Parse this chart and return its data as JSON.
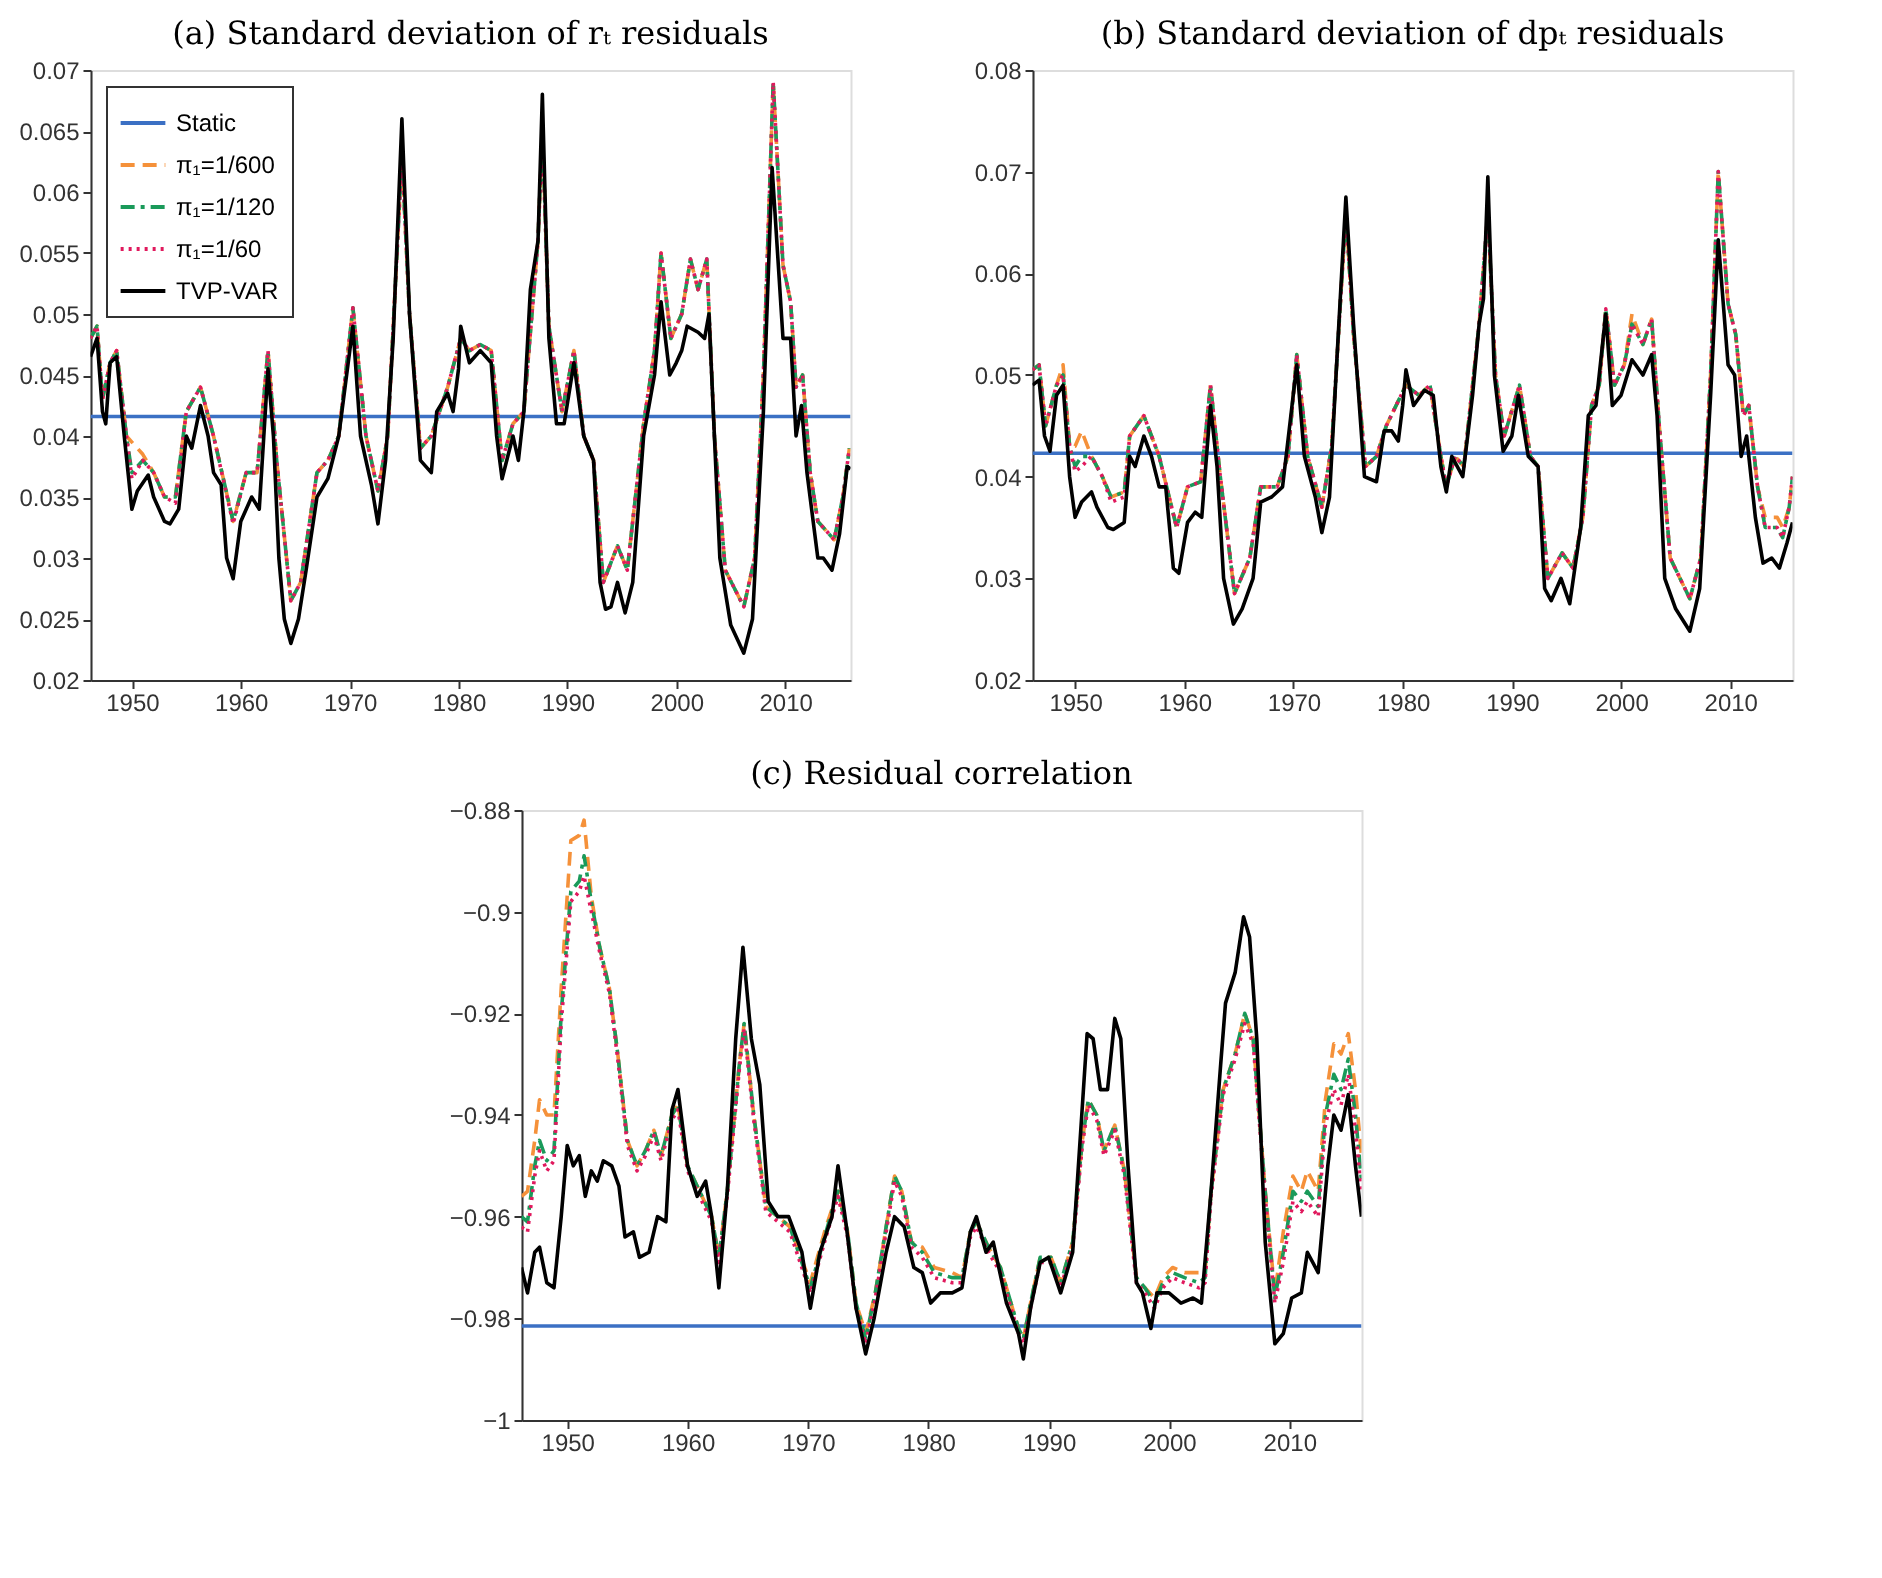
{
  "chart_data": [
    {
      "type": "line",
      "title": "(a) Standard deviation of rₜ residuals",
      "legend": "top left",
      "grid": false,
      "xlim": [
        1946.2,
        2016
      ],
      "xticks": [
        1950,
        1960,
        1970,
        1980,
        1990,
        2000,
        2010
      ],
      "ylim": [
        0.02,
        0.07
      ],
      "yticks": [
        0.02,
        0.025,
        0.03,
        0.035,
        0.04,
        0.045,
        0.05,
        0.055,
        0.06,
        0.065,
        0.07
      ],
      "x": [
        1946.2,
        1946.8,
        1947.3,
        1948,
        1948.6,
        1949.5,
        1950,
        1951,
        1952,
        1953,
        1954,
        1955,
        1956.3,
        1957.5,
        1959.3,
        1960.5,
        1961.5,
        1962.5,
        1963.3,
        1964.6,
        1965.5,
        1967,
        1968,
        1969,
        1970.3,
        1971.5,
        1972.6,
        1973.5,
        1974.8,
        1975.5,
        1976.5,
        1977.5,
        1979,
        1980.2,
        1981,
        1982,
        1983,
        1984,
        1985,
        1986,
        1987.3,
        1987.7,
        1988.3,
        1989.5,
        1990.6,
        1991.5,
        1992.4,
        1993.3,
        1994.6,
        1995.5,
        1997,
        1998,
        1998.6,
        1999.5,
        2000.5,
        2001.3,
        2002,
        2002.8,
        2003.5,
        2004.5,
        2006.2,
        2007.2,
        2008,
        2008.9,
        2009.8,
        2010.5,
        2011,
        2011.6,
        2012.3,
        2013,
        2014,
        2014.5,
        2015.3,
        2015.9
      ],
      "series": [
        {
          "name": "Static",
          "color": "#3b70c4",
          "line_style": "solid",
          "x": [
            1946.2,
            2016
          ],
          "values": [
            0.0416,
            0.0416
          ]
        },
        {
          "name": "π₁=1/600",
          "color": "#f5913a",
          "line_style": "dashed",
          "values": [
            0.048,
            0.049,
            0.043,
            0.046,
            0.047,
            0.04,
            0.0395,
            0.0385,
            0.037,
            0.035,
            0.035,
            0.042,
            0.044,
            0.04,
            0.033,
            0.037,
            0.037,
            0.047,
            0.038,
            0.0265,
            0.028,
            0.037,
            0.038,
            0.04,
            0.0505,
            0.04,
            0.0355,
            0.04,
            0.063,
            0.05,
            0.039,
            0.04,
            0.044,
            0.048,
            0.047,
            0.0475,
            0.047,
            0.038,
            0.041,
            0.042,
            0.056,
            0.065,
            0.049,
            0.042,
            0.047,
            0.04,
            0.038,
            0.028,
            0.031,
            0.029,
            0.041,
            0.047,
            0.055,
            0.048,
            0.05,
            0.0545,
            0.052,
            0.0545,
            0.04,
            0.029,
            0.026,
            0.03,
            0.045,
            0.069,
            0.054,
            0.051,
            0.044,
            0.045,
            0.037,
            0.033,
            0.032,
            0.0315,
            0.035,
            0.039
          ]
        },
        {
          "name": "π₁=1/120",
          "color": "#1a9a5a",
          "line_style": "dashdot",
          "values": [
            0.048,
            0.049,
            0.043,
            0.046,
            0.047,
            0.04,
            0.037,
            0.038,
            0.037,
            0.035,
            0.035,
            0.042,
            0.044,
            0.04,
            0.033,
            0.037,
            0.037,
            0.047,
            0.038,
            0.0265,
            0.028,
            0.037,
            0.038,
            0.04,
            0.0505,
            0.04,
            0.0355,
            0.04,
            0.063,
            0.05,
            0.039,
            0.04,
            0.044,
            0.048,
            0.047,
            0.0475,
            0.047,
            0.038,
            0.041,
            0.042,
            0.056,
            0.065,
            0.049,
            0.042,
            0.047,
            0.04,
            0.038,
            0.028,
            0.031,
            0.029,
            0.041,
            0.047,
            0.055,
            0.048,
            0.05,
            0.0545,
            0.052,
            0.0545,
            0.04,
            0.029,
            0.026,
            0.03,
            0.045,
            0.069,
            0.054,
            0.051,
            0.044,
            0.045,
            0.037,
            0.033,
            0.032,
            0.0315,
            0.035,
            0.039
          ]
        },
        {
          "name": "π₁=1/60",
          "color": "#e0195d",
          "line_style": "dotted",
          "values": [
            0.048,
            0.049,
            0.043,
            0.046,
            0.047,
            0.04,
            0.0365,
            0.038,
            0.037,
            0.035,
            0.0345,
            0.042,
            0.044,
            0.04,
            0.0328,
            0.037,
            0.037,
            0.047,
            0.038,
            0.0265,
            0.028,
            0.037,
            0.038,
            0.04,
            0.0505,
            0.04,
            0.0355,
            0.04,
            0.063,
            0.05,
            0.039,
            0.04,
            0.044,
            0.048,
            0.047,
            0.0475,
            0.047,
            0.038,
            0.041,
            0.042,
            0.056,
            0.065,
            0.049,
            0.042,
            0.047,
            0.04,
            0.038,
            0.028,
            0.031,
            0.029,
            0.041,
            0.047,
            0.055,
            0.048,
            0.05,
            0.0545,
            0.052,
            0.0545,
            0.04,
            0.029,
            0.026,
            0.03,
            0.045,
            0.069,
            0.054,
            0.051,
            0.044,
            0.045,
            0.037,
            0.033,
            0.032,
            0.0315,
            0.035,
            0.039
          ]
        },
        {
          "name": "TVP-VAR",
          "color": "#000000",
          "line_style": "solid",
          "x": [
            1946.2,
            1946.8,
            1947.3,
            1947.6,
            1948,
            1948.6,
            1949.3,
            1950,
            1950.5,
            1951.5,
            1952,
            1953,
            1953.5,
            1954.3,
            1955,
            1955.5,
            1956.3,
            1957,
            1957.5,
            1958.2,
            1958.7,
            1959.3,
            1960,
            1960.5,
            1961,
            1961.7,
            1962.5,
            1963,
            1963.5,
            1964,
            1964.6,
            1965.3,
            1966,
            1967,
            1968,
            1969,
            1970.3,
            1971,
            1972,
            1972.6,
            1973.3,
            1974,
            1974.8,
            1975.5,
            1976.5,
            1977.5,
            1978,
            1979,
            1979.5,
            1980,
            1980.2,
            1981,
            1982,
            1983,
            1983.5,
            1984,
            1985,
            1985.5,
            1986,
            1986.6,
            1987.3,
            1987.7,
            1988.3,
            1989,
            1989.7,
            1990.6,
            1991.5,
            1992.4,
            1993,
            1993.5,
            1994,
            1994.6,
            1995.3,
            1996,
            1997,
            1998,
            1998.6,
            1999.4,
            2000,
            2000.5,
            2001,
            2002,
            2002.6,
            2003,
            2004,
            2005,
            2006.2,
            2007,
            2008,
            2008.8,
            2009.8,
            2010.5,
            2011,
            2011.5,
            2012,
            2013,
            2013.5,
            2014.3,
            2015,
            2015.7,
            2016
          ],
          "values": [
            0.0465,
            0.048,
            0.042,
            0.041,
            0.046,
            0.0465,
            0.04,
            0.034,
            0.0355,
            0.0368,
            0.035,
            0.033,
            0.0328,
            0.034,
            0.04,
            0.039,
            0.0425,
            0.04,
            0.037,
            0.036,
            0.03,
            0.0283,
            0.033,
            0.034,
            0.035,
            0.034,
            0.0455,
            0.04,
            0.03,
            0.025,
            0.023,
            0.025,
            0.029,
            0.035,
            0.0365,
            0.04,
            0.049,
            0.04,
            0.036,
            0.0328,
            0.038,
            0.048,
            0.066,
            0.05,
            0.038,
            0.037,
            0.042,
            0.0435,
            0.042,
            0.0455,
            0.049,
            0.046,
            0.047,
            0.046,
            0.04,
            0.0365,
            0.04,
            0.038,
            0.042,
            0.052,
            0.056,
            0.068,
            0.048,
            0.041,
            0.041,
            0.046,
            0.04,
            0.038,
            0.028,
            0.0258,
            0.026,
            0.028,
            0.0255,
            0.028,
            0.04,
            0.045,
            0.051,
            0.045,
            0.046,
            0.047,
            0.049,
            0.0485,
            0.048,
            0.05,
            0.03,
            0.0245,
            0.0222,
            0.025,
            0.042,
            0.062,
            0.048,
            0.048,
            0.04,
            0.0425,
            0.037,
            0.03,
            0.03,
            0.029,
            0.032,
            0.0375,
            0.0373
          ]
        }
      ]
    },
    {
      "type": "line",
      "title": "(b) Standard deviation of dpₜ residuals",
      "legend": false,
      "grid": false,
      "xlim": [
        1946.1,
        2015.7
      ],
      "xticks": [
        1950,
        1960,
        1970,
        1980,
        1990,
        2000,
        2010
      ],
      "ylim": [
        0.02,
        0.08
      ],
      "yticks": [
        0.02,
        0.03,
        0.04,
        0.05,
        0.06,
        0.07,
        0.08
      ],
      "x": [
        1946.1,
        1946.7,
        1947.3,
        1948.3,
        1948.9,
        1949.5,
        1950,
        1950.6,
        1951.5,
        1952.5,
        1953.3,
        1954.5,
        1955,
        1956.3,
        1957.7,
        1959.3,
        1960.3,
        1961.5,
        1962.4,
        1963.3,
        1964.6,
        1966,
        1967,
        1968.5,
        1969.5,
        1970.3,
        1971.3,
        1972.6,
        1973.5,
        1974.8,
        1975.5,
        1976.6,
        1977.6,
        1978.5,
        1980.3,
        1981.5,
        1982.5,
        1983.5,
        1984,
        1984.8,
        1985.6,
        1987,
        1987.8,
        1988.5,
        1989.3,
        1990.7,
        1991.7,
        1992.4,
        1993.3,
        1994.6,
        1995.6,
        1996.5,
        1997.3,
        1998,
        1998.6,
        1999.4,
        2000.3,
        2001,
        2002,
        2002.8,
        2003.5,
        2004.5,
        2006.3,
        2007.3,
        2008.2,
        2008.9,
        2009.8,
        2010.5,
        2011.2,
        2011.7,
        2012.5,
        2013.2,
        2014.3,
        2014.8,
        2015.4,
        2015.7
      ],
      "series": [
        {
          "color": "#3b70c4",
          "line_style": "solid",
          "x": [
            1946.1,
            2015.7
          ],
          "values": [
            0.0423,
            0.0423
          ]
        },
        {
          "color": "#f5913a",
          "line_style": "dashed",
          "values": [
            0.0505,
            0.051,
            0.045,
            0.049,
            0.051,
            0.043,
            0.043,
            0.0445,
            0.042,
            0.04,
            0.038,
            0.0385,
            0.044,
            0.046,
            0.042,
            0.035,
            0.039,
            0.0395,
            0.049,
            0.04,
            0.0285,
            0.032,
            0.039,
            0.039,
            0.042,
            0.052,
            0.042,
            0.037,
            0.043,
            0.066,
            0.054,
            0.041,
            0.042,
            0.045,
            0.049,
            0.048,
            0.049,
            0.042,
            0.039,
            0.042,
            0.041,
            0.055,
            0.066,
            0.05,
            0.044,
            0.049,
            0.042,
            0.041,
            0.03,
            0.0325,
            0.031,
            0.036,
            0.047,
            0.049,
            0.0565,
            0.049,
            0.051,
            0.056,
            0.053,
            0.0555,
            0.045,
            0.032,
            0.028,
            0.032,
            0.05,
            0.07,
            0.057,
            0.054,
            0.046,
            0.047,
            0.039,
            0.036,
            0.036,
            0.035,
            0.037,
            0.04
          ]
        },
        {
          "color": "#1a9a5a",
          "line_style": "dashdot",
          "values": [
            0.0505,
            0.051,
            0.045,
            0.049,
            0.05,
            0.043,
            0.041,
            0.042,
            0.042,
            0.04,
            0.038,
            0.0385,
            0.044,
            0.046,
            0.042,
            0.035,
            0.039,
            0.0395,
            0.049,
            0.04,
            0.0285,
            0.032,
            0.039,
            0.039,
            0.042,
            0.052,
            0.042,
            0.037,
            0.043,
            0.066,
            0.054,
            0.041,
            0.042,
            0.045,
            0.049,
            0.048,
            0.049,
            0.042,
            0.039,
            0.042,
            0.041,
            0.055,
            0.066,
            0.05,
            0.044,
            0.049,
            0.042,
            0.041,
            0.03,
            0.0325,
            0.031,
            0.036,
            0.047,
            0.049,
            0.0565,
            0.049,
            0.051,
            0.055,
            0.053,
            0.0555,
            0.045,
            0.032,
            0.028,
            0.032,
            0.05,
            0.07,
            0.057,
            0.054,
            0.046,
            0.047,
            0.039,
            0.035,
            0.035,
            0.034,
            0.037,
            0.04
          ]
        },
        {
          "color": "#e0195d",
          "line_style": "dotted",
          "values": [
            0.0505,
            0.051,
            0.045,
            0.049,
            0.05,
            0.043,
            0.0405,
            0.041,
            0.042,
            0.04,
            0.0375,
            0.038,
            0.044,
            0.046,
            0.042,
            0.035,
            0.039,
            0.0395,
            0.049,
            0.04,
            0.0285,
            0.032,
            0.039,
            0.039,
            0.042,
            0.052,
            0.042,
            0.037,
            0.043,
            0.066,
            0.054,
            0.041,
            0.042,
            0.045,
            0.049,
            0.048,
            0.049,
            0.042,
            0.039,
            0.042,
            0.041,
            0.055,
            0.066,
            0.05,
            0.044,
            0.049,
            0.042,
            0.041,
            0.03,
            0.0325,
            0.031,
            0.036,
            0.047,
            0.049,
            0.0565,
            0.049,
            0.051,
            0.055,
            0.053,
            0.0555,
            0.045,
            0.032,
            0.028,
            0.032,
            0.05,
            0.07,
            0.057,
            0.054,
            0.046,
            0.047,
            0.039,
            0.035,
            0.035,
            0.034,
            0.037,
            0.04
          ]
        },
        {
          "color": "#000000",
          "line_style": "solid",
          "x": [
            1946.1,
            1946.7,
            1947.2,
            1947.7,
            1948.3,
            1948.9,
            1949.5,
            1950,
            1950.6,
            1951.5,
            1952,
            1953,
            1953.5,
            1954.5,
            1955,
            1955.5,
            1956.3,
            1957,
            1957.7,
            1958.3,
            1959,
            1959.5,
            1960.3,
            1961,
            1961.6,
            1962.4,
            1963,
            1963.6,
            1964.5,
            1965.3,
            1966.3,
            1967,
            1968,
            1969,
            1970.3,
            1971,
            1972,
            1972.6,
            1973.3,
            1974,
            1974.8,
            1975.5,
            1976.5,
            1977.6,
            1978.3,
            1979,
            1979.6,
            1980,
            1980.3,
            1981,
            1982,
            1982.8,
            1983.5,
            1984,
            1984.5,
            1985.5,
            1986.4,
            1987,
            1987.4,
            1987.8,
            1988.4,
            1989.2,
            1990,
            1990.6,
            1991.5,
            1992.4,
            1993,
            1993.6,
            1994.5,
            1995.3,
            1996.3,
            1997,
            1997.7,
            1998.6,
            1999.2,
            2000,
            2001,
            2002,
            2002.8,
            2003.3,
            2004,
            2005,
            2006.3,
            2007.2,
            2008.2,
            2008.9,
            2009.8,
            2010.4,
            2011,
            2011.5,
            2012.3,
            2013,
            2013.8,
            2014.5,
            2015.2,
            2015.7
          ],
          "values": [
            0.049,
            0.0495,
            0.044,
            0.0425,
            0.048,
            0.049,
            0.04,
            0.036,
            0.0375,
            0.0385,
            0.037,
            0.035,
            0.0348,
            0.0355,
            0.042,
            0.041,
            0.044,
            0.042,
            0.039,
            0.039,
            0.031,
            0.0305,
            0.0355,
            0.0365,
            0.036,
            0.047,
            0.041,
            0.03,
            0.0255,
            0.027,
            0.03,
            0.0375,
            0.038,
            0.039,
            0.051,
            0.042,
            0.038,
            0.0345,
            0.038,
            0.052,
            0.0675,
            0.055,
            0.04,
            0.0395,
            0.0445,
            0.0445,
            0.0435,
            0.047,
            0.0505,
            0.047,
            0.0485,
            0.048,
            0.041,
            0.0385,
            0.042,
            0.04,
            0.048,
            0.055,
            0.0575,
            0.0695,
            0.05,
            0.0425,
            0.044,
            0.048,
            0.042,
            0.041,
            0.029,
            0.0278,
            0.03,
            0.0275,
            0.035,
            0.046,
            0.047,
            0.056,
            0.047,
            0.048,
            0.0515,
            0.05,
            0.052,
            0.046,
            0.03,
            0.027,
            0.0248,
            0.029,
            0.048,
            0.0633,
            0.051,
            0.05,
            0.042,
            0.044,
            0.036,
            0.0315,
            0.032,
            0.031,
            0.0335,
            0.0355
          ]
        }
      ]
    },
    {
      "type": "line",
      "title": "(c) Residual correlation",
      "legend": false,
      "grid": false,
      "xlim": [
        1946.2,
        2016
      ],
      "xticks": [
        1950,
        1960,
        1970,
        1980,
        1990,
        2000,
        2010
      ],
      "ylim": [
        -1,
        -0.88
      ],
      "yticks": [
        -1,
        -0.98,
        -0.96,
        -0.94,
        -0.92,
        -0.9,
        -0.88
      ],
      "x": [
        1946.2,
        1946.7,
        1947.3,
        1947.7,
        1948.3,
        1948.9,
        1949.5,
        1950.3,
        1951,
        1951.4,
        1952,
        1952.7,
        1953.5,
        1954.2,
        1955,
        1955.8,
        1956.5,
        1957.2,
        1957.8,
        1958.7,
        1959.2,
        1960,
        1961,
        1962,
        1962.6,
        1963.3,
        1964.3,
        1964.7,
        1965.5,
        1966.5,
        1967.5,
        1968.5,
        1970.2,
        1971.5,
        1972.5,
        1973.3,
        1974,
        1974.8,
        1975.6,
        1976.5,
        1977.2,
        1977.8,
        1978.6,
        1979.5,
        1980.5,
        1982,
        1982.8,
        1983.5,
        1984,
        1985,
        1986,
        1987.5,
        1987.9,
        1988.5,
        1989.3,
        1990.2,
        1991,
        1992,
        1992.8,
        1993.3,
        1994,
        1994.6,
        1995.5,
        1996.3,
        1997.3,
        1998,
        1998.8,
        1999.5,
        2000.3,
        2001.3,
        2002.5,
        2003,
        2003.5,
        2004.5,
        2005.5,
        2006.3,
        2007,
        2008,
        2008.8,
        2009.5,
        2010.3,
        2011,
        2011.5,
        2012.4,
        2013,
        2013.7,
        2014.3,
        2014.9,
        2015.5,
        2016
      ],
      "series": [
        {
          "color": "#3b70c4",
          "line_style": "solid",
          "x": [
            1946.2,
            2016
          ],
          "values": [
            -0.9815,
            -0.9815
          ]
        },
        {
          "color": "#f5913a",
          "line_style": "dashed",
          "values": [
            -0.956,
            -0.955,
            -0.945,
            -0.937,
            -0.94,
            -0.94,
            -0.915,
            -0.886,
            -0.885,
            -0.882,
            -0.897,
            -0.907,
            -0.915,
            -0.928,
            -0.945,
            -0.95,
            -0.947,
            -0.943,
            -0.948,
            -0.94,
            -0.938,
            -0.95,
            -0.955,
            -0.96,
            -0.968,
            -0.955,
            -0.93,
            -0.922,
            -0.94,
            -0.958,
            -0.96,
            -0.962,
            -0.973,
            -0.962,
            -0.955,
            -0.963,
            -0.977,
            -0.983,
            -0.975,
            -0.962,
            -0.952,
            -0.955,
            -0.965,
            -0.966,
            -0.97,
            -0.971,
            -0.972,
            -0.963,
            -0.961,
            -0.966,
            -0.97,
            -0.982,
            -0.984,
            -0.977,
            -0.968,
            -0.968,
            -0.973,
            -0.965,
            -0.945,
            -0.937,
            -0.94,
            -0.947,
            -0.942,
            -0.951,
            -0.972,
            -0.974,
            -0.976,
            -0.972,
            -0.97,
            -0.971,
            -0.971,
            -0.971,
            -0.955,
            -0.935,
            -0.928,
            -0.92,
            -0.925,
            -0.955,
            -0.975,
            -0.963,
            -0.952,
            -0.955,
            -0.951,
            -0.955,
            -0.937,
            -0.926,
            -0.928,
            -0.924,
            -0.935,
            -0.948
          ]
        },
        {
          "color": "#1a9a5a",
          "line_style": "dashdot",
          "values": [
            -0.96,
            -0.961,
            -0.95,
            -0.945,
            -0.949,
            -0.947,
            -0.92,
            -0.896,
            -0.894,
            -0.889,
            -0.898,
            -0.907,
            -0.915,
            -0.928,
            -0.945,
            -0.95,
            -0.947,
            -0.943,
            -0.948,
            -0.94,
            -0.938,
            -0.95,
            -0.955,
            -0.96,
            -0.968,
            -0.955,
            -0.93,
            -0.922,
            -0.94,
            -0.958,
            -0.96,
            -0.962,
            -0.974,
            -0.963,
            -0.955,
            -0.963,
            -0.977,
            -0.984,
            -0.975,
            -0.962,
            -0.952,
            -0.955,
            -0.965,
            -0.967,
            -0.971,
            -0.972,
            -0.972,
            -0.963,
            -0.961,
            -0.966,
            -0.97,
            -0.982,
            -0.984,
            -0.977,
            -0.968,
            -0.968,
            -0.973,
            -0.965,
            -0.945,
            -0.937,
            -0.94,
            -0.947,
            -0.942,
            -0.951,
            -0.972,
            -0.974,
            -0.977,
            -0.973,
            -0.971,
            -0.972,
            -0.973,
            -0.972,
            -0.955,
            -0.935,
            -0.928,
            -0.92,
            -0.925,
            -0.955,
            -0.976,
            -0.967,
            -0.955,
            -0.957,
            -0.955,
            -0.958,
            -0.94,
            -0.932,
            -0.935,
            -0.929,
            -0.94,
            -0.953
          ]
        },
        {
          "color": "#e0195d",
          "line_style": "dotted",
          "values": [
            -0.962,
            -0.963,
            -0.952,
            -0.947,
            -0.951,
            -0.949,
            -0.922,
            -0.898,
            -0.896,
            -0.893,
            -0.9,
            -0.908,
            -0.916,
            -0.929,
            -0.946,
            -0.951,
            -0.948,
            -0.944,
            -0.949,
            -0.941,
            -0.939,
            -0.951,
            -0.956,
            -0.961,
            -0.969,
            -0.956,
            -0.931,
            -0.923,
            -0.941,
            -0.959,
            -0.961,
            -0.963,
            -0.975,
            -0.964,
            -0.956,
            -0.964,
            -0.978,
            -0.985,
            -0.976,
            -0.963,
            -0.953,
            -0.956,
            -0.966,
            -0.968,
            -0.972,
            -0.973,
            -0.973,
            -0.964,
            -0.962,
            -0.967,
            -0.971,
            -0.983,
            -0.985,
            -0.978,
            -0.969,
            -0.969,
            -0.974,
            -0.966,
            -0.946,
            -0.938,
            -0.941,
            -0.948,
            -0.943,
            -0.952,
            -0.973,
            -0.975,
            -0.978,
            -0.974,
            -0.972,
            -0.973,
            -0.974,
            -0.973,
            -0.956,
            -0.936,
            -0.929,
            -0.922,
            -0.926,
            -0.956,
            -0.977,
            -0.969,
            -0.957,
            -0.959,
            -0.957,
            -0.96,
            -0.942,
            -0.935,
            -0.938,
            -0.932,
            -0.943,
            -0.955
          ]
        },
        {
          "color": "#000000",
          "line_style": "solid",
          "x": [
            1946.2,
            1946.7,
            1947.3,
            1947.7,
            1948.3,
            1948.9,
            1949.5,
            1950,
            1950.5,
            1951,
            1951.5,
            1952,
            1952.5,
            1953,
            1953.7,
            1954.3,
            1954.8,
            1955.5,
            1956,
            1956.8,
            1957.5,
            1958.2,
            1958.7,
            1959.2,
            1960,
            1960.8,
            1961.5,
            1962,
            1962.6,
            1963.3,
            1964,
            1964.6,
            1965.3,
            1966,
            1966.7,
            1967.5,
            1968.4,
            1969.5,
            1970.2,
            1971,
            1972,
            1972.5,
            1973.2,
            1974,
            1974.8,
            1975.5,
            1976.5,
            1977.2,
            1978,
            1978.8,
            1979.5,
            1980.2,
            1981,
            1982,
            1982.8,
            1983.5,
            1984,
            1984.8,
            1985.4,
            1986.5,
            1987.5,
            1987.9,
            1988.5,
            1989.3,
            1990,
            1991,
            1992,
            1992.7,
            1993.2,
            1993.7,
            1994.3,
            1994.9,
            1995.5,
            1996,
            1996.6,
            1997.3,
            1997.8,
            1998.5,
            1999,
            2000,
            2001,
            2002,
            2002.7,
            2003.5,
            2004.3,
            2004.7,
            2005.5,
            2006.2,
            2006.7,
            2007.3,
            2008,
            2008.8,
            2009.5,
            2010.2,
            2011,
            2011.5,
            2012.4,
            2013.2,
            2013.7,
            2014.3,
            2014.9,
            2015.5,
            2016
          ],
          "values": [
            -0.97,
            -0.975,
            -0.967,
            -0.966,
            -0.973,
            -0.974,
            -0.96,
            -0.946,
            -0.95,
            -0.948,
            -0.956,
            -0.951,
            -0.953,
            -0.949,
            -0.95,
            -0.954,
            -0.964,
            -0.963,
            -0.968,
            -0.967,
            -0.96,
            -0.961,
            -0.939,
            -0.935,
            -0.95,
            -0.956,
            -0.953,
            -0.96,
            -0.974,
            -0.955,
            -0.925,
            -0.907,
            -0.925,
            -0.934,
            -0.957,
            -0.96,
            -0.96,
            -0.967,
            -0.978,
            -0.967,
            -0.96,
            -0.95,
            -0.962,
            -0.978,
            -0.987,
            -0.98,
            -0.967,
            -0.96,
            -0.962,
            -0.97,
            -0.971,
            -0.977,
            -0.975,
            -0.975,
            -0.974,
            -0.963,
            -0.96,
            -0.967,
            -0.965,
            -0.977,
            -0.983,
            -0.988,
            -0.978,
            -0.969,
            -0.968,
            -0.975,
            -0.967,
            -0.942,
            -0.924,
            -0.925,
            -0.935,
            -0.935,
            -0.921,
            -0.925,
            -0.95,
            -0.973,
            -0.975,
            -0.982,
            -0.975,
            -0.975,
            -0.977,
            -0.976,
            -0.977,
            -0.955,
            -0.93,
            -0.918,
            -0.912,
            -0.901,
            -0.905,
            -0.925,
            -0.965,
            -0.985,
            -0.983,
            -0.976,
            -0.975,
            -0.967,
            -0.971,
            -0.95,
            -0.94,
            -0.943,
            -0.936,
            -0.95,
            -0.96
          ]
        }
      ]
    }
  ]
}
